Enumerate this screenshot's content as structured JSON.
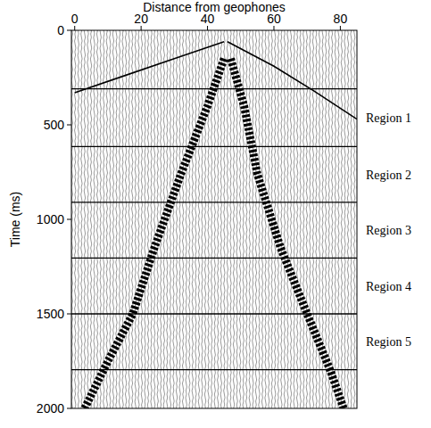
{
  "chart_data": {
    "type": "seismic",
    "x_label": "Distance from geophones",
    "y_label": "Time (ms)",
    "xlim": [
      -1,
      85
    ],
    "xticks": [
      0,
      20,
      40,
      60,
      80
    ],
    "ylim": [
      0,
      2000
    ],
    "yticks": [
      0,
      500,
      1000,
      1500,
      2000
    ],
    "series": [
      {
        "color": "#000000",
        "line_style": "band",
        "x": [
          45,
          40,
          32,
          24,
          17.5,
          10,
          3
        ],
        "values": [
          150,
          400,
          760,
          1150,
          1500,
          1750,
          2000
        ]
      },
      {
        "color": "#000000",
        "line_style": "band",
        "x": [
          47,
          51,
          55,
          62,
          70,
          77,
          81
        ],
        "values": [
          150,
          400,
          760,
          1150,
          1500,
          1800,
          2000
        ]
      },
      {
        "color": "#000000",
        "line_style": "thin",
        "x": [
          45,
          30,
          15,
          0
        ],
        "values": [
          60,
          150,
          240,
          330
        ]
      },
      {
        "color": "#000000",
        "line_style": "thin",
        "x": [
          46,
          60,
          72,
          85
        ],
        "values": [
          60,
          190,
          320,
          470
        ]
      }
    ],
    "regions": [
      {
        "label": "Region 1",
        "from": 310,
        "to": 615
      },
      {
        "label": "Region 2",
        "from": 615,
        "to": 910
      },
      {
        "label": "Region 3",
        "from": 910,
        "to": 1205
      },
      {
        "label": "Region 4",
        "from": 1205,
        "to": 1500
      },
      {
        "label": "Region 5",
        "from": 1500,
        "to": 1795
      }
    ]
  }
}
